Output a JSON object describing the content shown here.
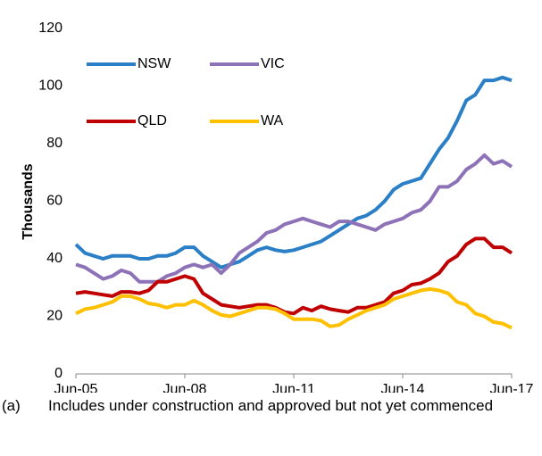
{
  "chart_data": {
    "type": "line",
    "y_label": "Thousands",
    "categories": [
      "Jun-05",
      null,
      null,
      null,
      null,
      null,
      null,
      null,
      null,
      null,
      null,
      null,
      "Jun-08",
      null,
      null,
      null,
      null,
      null,
      null,
      null,
      null,
      null,
      null,
      null,
      "Jun-11",
      null,
      null,
      null,
      null,
      null,
      null,
      null,
      null,
      null,
      null,
      null,
      "Jun-14",
      null,
      null,
      null,
      null,
      null,
      null,
      null,
      null,
      null,
      null,
      null,
      "Jun-17"
    ],
    "series": [
      {
        "name": "NSW",
        "color": "#2a7fc6",
        "values": [
          45,
          42,
          41,
          40,
          41,
          41,
          41,
          40,
          40,
          41,
          41,
          42,
          44,
          44,
          41,
          39,
          37,
          38,
          39,
          41,
          43,
          44,
          43,
          42.5,
          43,
          44,
          45,
          46,
          48,
          50,
          52,
          54,
          55,
          57,
          60,
          64,
          66,
          67,
          68,
          73,
          78,
          82,
          88,
          95,
          97,
          102,
          102,
          103,
          102
        ]
      },
      {
        "name": "VIC",
        "color": "#8e72b8",
        "values": [
          38,
          37,
          35,
          33,
          34,
          36,
          35,
          32,
          32,
          32,
          34,
          35,
          37,
          38,
          37,
          38,
          35,
          38,
          42,
          44,
          46,
          49,
          50,
          52,
          53,
          54,
          53,
          52,
          51,
          53,
          53,
          52,
          51,
          50,
          52,
          53,
          54,
          56,
          57,
          60,
          65,
          65,
          67,
          71,
          73,
          76,
          73,
          74,
          72
        ]
      },
      {
        "name": "QLD",
        "color": "#c00000",
        "values": [
          28,
          28.5,
          28,
          27.5,
          27,
          28.5,
          28.5,
          28,
          29,
          32,
          32,
          33,
          34,
          33,
          28,
          26,
          24,
          23.5,
          23,
          23.5,
          24,
          24,
          23,
          21.5,
          21,
          23,
          22,
          23.5,
          22.5,
          22,
          21.5,
          23,
          23,
          24,
          25,
          28,
          29,
          31,
          31.5,
          33,
          35,
          39,
          41,
          45,
          47,
          47,
          44,
          44,
          42
        ]
      },
      {
        "name": "WA",
        "color": "#ffc000",
        "values": [
          21,
          22.5,
          23,
          24,
          25,
          27,
          27,
          26,
          24.5,
          24,
          23,
          24,
          24,
          25.5,
          24,
          22,
          20.5,
          20,
          21,
          22,
          23,
          23,
          22.5,
          21,
          19,
          19,
          19,
          18.5,
          16.5,
          17,
          19,
          20.5,
          22,
          23,
          24,
          26,
          27,
          28,
          29,
          29.5,
          29,
          28,
          25,
          24,
          21,
          20,
          18,
          17.5,
          16
        ]
      }
    ],
    "ylim": [
      0,
      120
    ],
    "yticks": [
      0,
      20,
      40,
      60,
      80,
      100,
      120
    ],
    "grid": false,
    "footnote": {
      "marker": "(a)",
      "text": "Includes under construction and approved but not yet commenced"
    }
  }
}
